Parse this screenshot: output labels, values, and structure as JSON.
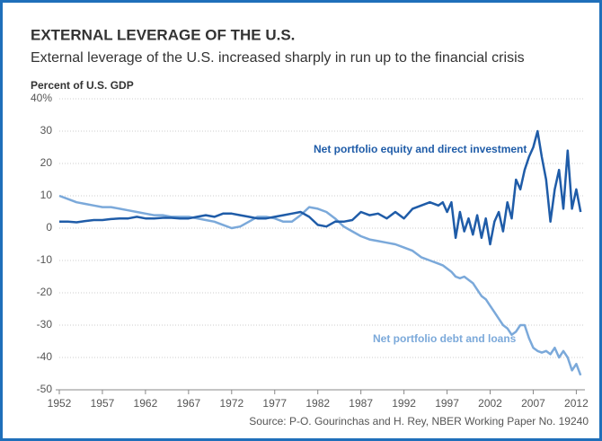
{
  "chart_data": {
    "type": "line",
    "title": "EXTERNAL LEVERAGE OF THE U.S.",
    "subtitle": "External leverage of the U.S. increased sharply in run up to the financial crisis",
    "y_axis_label": "Percent of U.S. GDP",
    "source": "Source: P-O. Gourinchas and H. Rey, NBER Working Paper No. 19240",
    "x": [
      1952,
      1953,
      1954,
      1955,
      1956,
      1957,
      1958,
      1959,
      1960,
      1961,
      1962,
      1963,
      1964,
      1965,
      1966,
      1967,
      1968,
      1969,
      1970,
      1971,
      1972,
      1973,
      1974,
      1975,
      1976,
      1977,
      1978,
      1979,
      1980,
      1981,
      1982,
      1983,
      1984,
      1985,
      1986,
      1987,
      1988,
      1989,
      1990,
      1991,
      1992,
      1993,
      1994,
      1995,
      1996,
      1996.5,
      1997,
      1997.5,
      1998,
      1998.5,
      1999,
      1999.5,
      2000,
      2000.5,
      2001,
      2001.5,
      2002,
      2002.5,
      2003,
      2003.5,
      2004,
      2004.5,
      2005,
      2005.5,
      2006,
      2006.5,
      2007,
      2007.5,
      2008,
      2008.5,
      2009,
      2009.5,
      2010,
      2010.5,
      2011,
      2011.5,
      2012,
      2012.5
    ],
    "series": [
      {
        "name": "Net portfolio equity and direct investment",
        "color": "#1f5ca8",
        "values": [
          2,
          2,
          1.8,
          2.2,
          2.5,
          2.5,
          2.8,
          3,
          3,
          3.5,
          3,
          3,
          3.2,
          3.2,
          3,
          3,
          3.5,
          4,
          3.5,
          4.5,
          4.5,
          4,
          3.5,
          3,
          3,
          3.5,
          4,
          4.5,
          5,
          3.5,
          1,
          0.5,
          2,
          2,
          2.5,
          5,
          4,
          4.5,
          3,
          5,
          3,
          6,
          7,
          8,
          7,
          8,
          5,
          8,
          -3,
          5,
          -1,
          3,
          -2,
          4,
          -3,
          3,
          -5,
          2,
          5,
          -1,
          8,
          3,
          15,
          12,
          18,
          22,
          25,
          30,
          22,
          15,
          2,
          12,
          18,
          6,
          24,
          6,
          12,
          5
        ]
      },
      {
        "name": "Net portfolio debt and loans",
        "color": "#7ba9da",
        "values": [
          10,
          9,
          8,
          7.5,
          7,
          6.5,
          6.5,
          6,
          5.5,
          5,
          4.5,
          4,
          4,
          3.5,
          3.5,
          3.5,
          3,
          2.5,
          2,
          1,
          0,
          0.5,
          2,
          3.5,
          3.5,
          3,
          2,
          2,
          4,
          6.5,
          6,
          5,
          3,
          0.5,
          -1,
          -2.5,
          -3.5,
          -4,
          -4.5,
          -5,
          -6,
          -7,
          -9,
          -10,
          -11,
          -11.5,
          -12.5,
          -13.5,
          -15,
          -15.5,
          -15,
          -16,
          -17,
          -19,
          -21,
          -22,
          -24,
          -26,
          -28,
          -30,
          -31,
          -33,
          -32,
          -30,
          -30,
          -34,
          -37,
          -38,
          -38.5,
          -38,
          -39,
          -37,
          -40,
          -38,
          -40,
          -44,
          -42,
          -45.5
        ]
      }
    ],
    "xlim": [
      1952,
      2013
    ],
    "xticks": [
      1952,
      1957,
      1962,
      1967,
      1972,
      1977,
      1982,
      1987,
      1992,
      1997,
      2002,
      2007,
      2012
    ],
    "ylim": [
      -50,
      40
    ],
    "yticks": [
      {
        "value": 40,
        "label": "40%"
      },
      30,
      20,
      10,
      0,
      -10,
      -20,
      -30,
      -40,
      -50
    ],
    "grid": true
  }
}
